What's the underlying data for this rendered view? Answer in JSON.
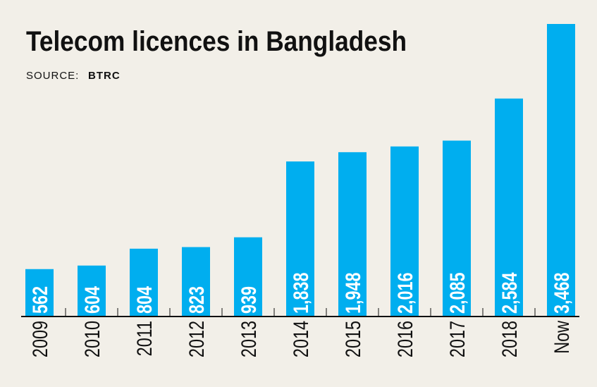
{
  "chart_data": {
    "type": "bar",
    "title": "Telecom licences in Bangladesh",
    "source_label": "SOURCE:",
    "source": "BTRC",
    "categories": [
      "2009",
      "2010",
      "2011",
      "2012",
      "2013",
      "2014",
      "2015",
      "2016",
      "2017",
      "2018",
      "Now"
    ],
    "values": [
      562,
      604,
      804,
      823,
      939,
      1838,
      1948,
      2016,
      2085,
      2584,
      3468
    ],
    "value_labels": [
      "562",
      "604",
      "804",
      "823",
      "939",
      "1,838",
      "1,948",
      "2,016",
      "2,085",
      "2,584",
      "3,468"
    ],
    "color": "#00aeef"
  }
}
